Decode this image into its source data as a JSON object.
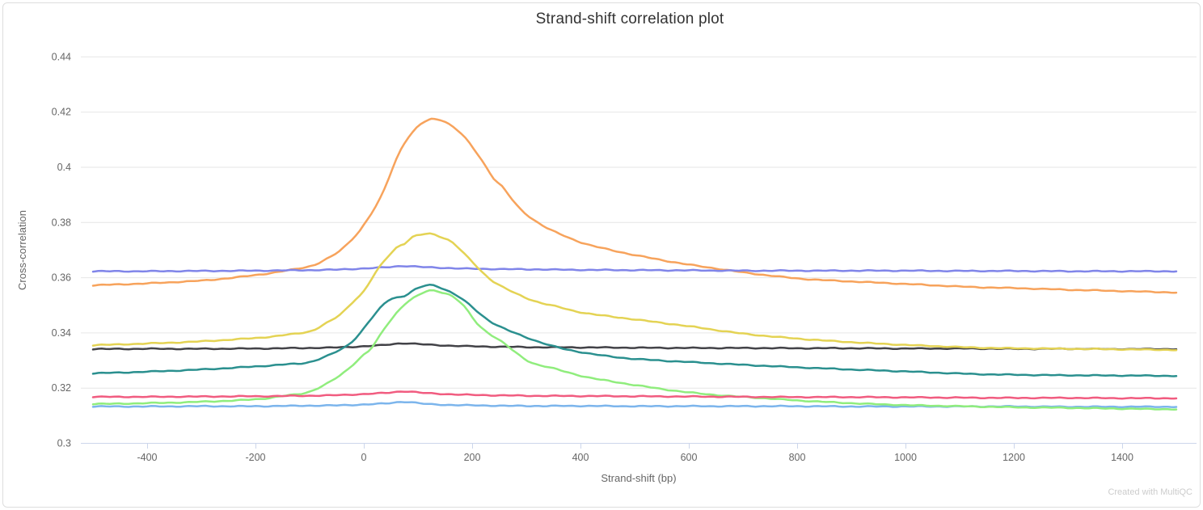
{
  "card": {
    "watermark": "Created with MultiQC"
  },
  "colors": {
    "gridline": "#e6e6e6",
    "axis_line": "#ccd6eb",
    "tick_label": "#666666",
    "axis_title": "#666666",
    "title": "#333333",
    "watermark": "#cccccc",
    "background": "#ffffff"
  },
  "chart_data": {
    "type": "line",
    "title": "Strand-shift correlation plot",
    "xlabel": "Strand-shift (bp)",
    "ylabel": "Cross-correlation",
    "xlim": [
      -500,
      1500
    ],
    "ylim": [
      0.3,
      0.44
    ],
    "grid": "horizontal-only",
    "legend": "none",
    "x_ticks": [
      -400,
      -200,
      0,
      200,
      400,
      600,
      800,
      1000,
      1200,
      1400
    ],
    "x_tick_labels": [
      "-400",
      "-200",
      "0",
      "200",
      "400",
      "600",
      "800",
      "1000",
      "1200",
      "1400"
    ],
    "y_ticks": [
      0.3,
      0.32,
      0.34,
      0.36,
      0.38,
      0.4,
      0.42,
      0.44
    ],
    "y_tick_labels": [
      "0.3",
      "0.32",
      "0.34",
      "0.36",
      "0.38",
      "0.4",
      "0.42",
      "0.44"
    ],
    "series": [
      {
        "color_name": "light-blue",
        "color": "#7cb5ec",
        "points": [
          [
            -500,
            0.3132
          ],
          [
            -400,
            0.3132
          ],
          [
            -300,
            0.3133
          ],
          [
            -200,
            0.3133
          ],
          [
            -100,
            0.3135
          ],
          [
            -50,
            0.3136
          ],
          [
            0,
            0.3139
          ],
          [
            40,
            0.3143
          ],
          [
            75,
            0.3149
          ],
          [
            110,
            0.3142
          ],
          [
            150,
            0.3138
          ],
          [
            200,
            0.3136
          ],
          [
            300,
            0.3134
          ],
          [
            400,
            0.3134
          ],
          [
            500,
            0.3133
          ],
          [
            600,
            0.3133
          ],
          [
            700,
            0.3133
          ],
          [
            800,
            0.3133
          ],
          [
            900,
            0.3132
          ],
          [
            1000,
            0.3132
          ],
          [
            1100,
            0.3132
          ],
          [
            1200,
            0.3132
          ],
          [
            1300,
            0.3131
          ],
          [
            1400,
            0.3131
          ],
          [
            1500,
            0.3131
          ]
        ]
      },
      {
        "color_name": "dark-grey",
        "color": "#434348",
        "points": [
          [
            -500,
            0.334
          ],
          [
            -400,
            0.3341
          ],
          [
            -300,
            0.3341
          ],
          [
            -200,
            0.3342
          ],
          [
            -100,
            0.3344
          ],
          [
            -50,
            0.3346
          ],
          [
            0,
            0.335
          ],
          [
            40,
            0.3355
          ],
          [
            72,
            0.3361
          ],
          [
            110,
            0.3357
          ],
          [
            150,
            0.3353
          ],
          [
            200,
            0.335
          ],
          [
            300,
            0.3347
          ],
          [
            400,
            0.3346
          ],
          [
            500,
            0.3345
          ],
          [
            600,
            0.3344
          ],
          [
            700,
            0.3344
          ],
          [
            800,
            0.3343
          ],
          [
            900,
            0.3343
          ],
          [
            1000,
            0.3342
          ],
          [
            1100,
            0.3342
          ],
          [
            1200,
            0.3341
          ],
          [
            1300,
            0.3341
          ],
          [
            1400,
            0.334
          ],
          [
            1500,
            0.334
          ]
        ]
      },
      {
        "color_name": "light-green",
        "color": "#90ed7d",
        "points": [
          [
            -500,
            0.3141
          ],
          [
            -400,
            0.3144
          ],
          [
            -300,
            0.3149
          ],
          [
            -200,
            0.3158
          ],
          [
            -150,
            0.317
          ],
          [
            -100,
            0.3186
          ],
          [
            -45,
            0.3243
          ],
          [
            0,
            0.332
          ],
          [
            15,
            0.3346
          ],
          [
            45,
            0.3433
          ],
          [
            75,
            0.3502
          ],
          [
            100,
            0.3534
          ],
          [
            122,
            0.3552
          ],
          [
            145,
            0.3545
          ],
          [
            164,
            0.3531
          ],
          [
            185,
            0.3495
          ],
          [
            209,
            0.3433
          ],
          [
            230,
            0.3398
          ],
          [
            254,
            0.3368
          ],
          [
            303,
            0.3297
          ],
          [
            350,
            0.327
          ],
          [
            408,
            0.324
          ],
          [
            460,
            0.3222
          ],
          [
            537,
            0.3199
          ],
          [
            600,
            0.3183
          ],
          [
            660,
            0.3172
          ],
          [
            716,
            0.3165
          ],
          [
            800,
            0.3154
          ],
          [
            900,
            0.3144
          ],
          [
            1000,
            0.3137
          ],
          [
            1100,
            0.3133
          ],
          [
            1200,
            0.3129
          ],
          [
            1300,
            0.3127
          ],
          [
            1400,
            0.3124
          ],
          [
            1500,
            0.3122
          ]
        ]
      },
      {
        "color_name": "orange",
        "color": "#f7a35c",
        "points": [
          [
            -500,
            0.3571
          ],
          [
            -400,
            0.3578
          ],
          [
            -300,
            0.3588
          ],
          [
            -250,
            0.3597
          ],
          [
            -200,
            0.3608
          ],
          [
            -150,
            0.3622
          ],
          [
            -100,
            0.364
          ],
          [
            -75,
            0.366
          ],
          [
            -45,
            0.3695
          ],
          [
            -15,
            0.3752
          ],
          [
            0,
            0.379
          ],
          [
            30,
            0.3885
          ],
          [
            60,
            0.4028
          ],
          [
            75,
            0.4087
          ],
          [
            90,
            0.4125
          ],
          [
            105,
            0.4155
          ],
          [
            120,
            0.417
          ],
          [
            130,
            0.4173
          ],
          [
            150,
            0.4164
          ],
          [
            180,
            0.412
          ],
          [
            210,
            0.4046
          ],
          [
            240,
            0.3958
          ],
          [
            255,
            0.393
          ],
          [
            290,
            0.3845
          ],
          [
            330,
            0.3788
          ],
          [
            370,
            0.375
          ],
          [
            410,
            0.3721
          ],
          [
            460,
            0.3697
          ],
          [
            510,
            0.3677
          ],
          [
            560,
            0.3659
          ],
          [
            610,
            0.3643
          ],
          [
            650,
            0.3632
          ],
          [
            700,
            0.3618
          ],
          [
            760,
            0.3604
          ],
          [
            820,
            0.3593
          ],
          [
            900,
            0.3585
          ],
          [
            1000,
            0.3576
          ],
          [
            1120,
            0.3565
          ],
          [
            1200,
            0.3561
          ],
          [
            1300,
            0.3555
          ],
          [
            1400,
            0.355
          ],
          [
            1500,
            0.3545
          ]
        ]
      },
      {
        "color_name": "purple",
        "color": "#8085e9",
        "points": [
          [
            -500,
            0.3622
          ],
          [
            -400,
            0.3622
          ],
          [
            -300,
            0.3623
          ],
          [
            -200,
            0.3624
          ],
          [
            -100,
            0.3626
          ],
          [
            -50,
            0.3628
          ],
          [
            0,
            0.3632
          ],
          [
            40,
            0.3636
          ],
          [
            72,
            0.3641
          ],
          [
            110,
            0.3637
          ],
          [
            150,
            0.3634
          ],
          [
            200,
            0.3631
          ],
          [
            300,
            0.3629
          ],
          [
            400,
            0.3627
          ],
          [
            500,
            0.3626
          ],
          [
            600,
            0.3625
          ],
          [
            700,
            0.3624
          ],
          [
            800,
            0.3624
          ],
          [
            900,
            0.3624
          ],
          [
            1000,
            0.3624
          ],
          [
            1100,
            0.3623
          ],
          [
            1200,
            0.3623
          ],
          [
            1300,
            0.3622
          ],
          [
            1400,
            0.3622
          ],
          [
            1500,
            0.3622
          ]
        ]
      },
      {
        "color_name": "pink",
        "color": "#f15c80",
        "points": [
          [
            -500,
            0.3167
          ],
          [
            -400,
            0.3167
          ],
          [
            -300,
            0.3168
          ],
          [
            -200,
            0.3169
          ],
          [
            -100,
            0.3171
          ],
          [
            -50,
            0.3173
          ],
          [
            0,
            0.3177
          ],
          [
            40,
            0.3181
          ],
          [
            75,
            0.3187
          ],
          [
            110,
            0.3181
          ],
          [
            150,
            0.3177
          ],
          [
            200,
            0.3174
          ],
          [
            300,
            0.3171
          ],
          [
            400,
            0.317
          ],
          [
            500,
            0.3169
          ],
          [
            600,
            0.3168
          ],
          [
            700,
            0.3167
          ],
          [
            800,
            0.3166
          ],
          [
            900,
            0.3166
          ],
          [
            1000,
            0.3165
          ],
          [
            1100,
            0.3164
          ],
          [
            1200,
            0.3163
          ],
          [
            1300,
            0.3163
          ],
          [
            1400,
            0.3162
          ],
          [
            1500,
            0.3162
          ]
        ]
      },
      {
        "color_name": "yellow",
        "color": "#e4d354",
        "points": [
          [
            -500,
            0.3354
          ],
          [
            -400,
            0.336
          ],
          [
            -300,
            0.3368
          ],
          [
            -200,
            0.338
          ],
          [
            -150,
            0.339
          ],
          [
            -100,
            0.3404
          ],
          [
            -75,
            0.3428
          ],
          [
            -45,
            0.3463
          ],
          [
            -15,
            0.3521
          ],
          [
            0,
            0.355
          ],
          [
            30,
            0.364
          ],
          [
            60,
            0.3707
          ],
          [
            75,
            0.3722
          ],
          [
            90,
            0.3746
          ],
          [
            105,
            0.3754
          ],
          [
            122,
            0.3758
          ],
          [
            140,
            0.3748
          ],
          [
            164,
            0.3726
          ],
          [
            194,
            0.3668
          ],
          [
            224,
            0.3609
          ],
          [
            250,
            0.3572
          ],
          [
            305,
            0.3521
          ],
          [
            360,
            0.3492
          ],
          [
            410,
            0.347
          ],
          [
            510,
            0.3445
          ],
          [
            610,
            0.342
          ],
          [
            700,
            0.3396
          ],
          [
            800,
            0.3378
          ],
          [
            900,
            0.3365
          ],
          [
            1000,
            0.3355
          ],
          [
            1120,
            0.3346
          ],
          [
            1200,
            0.3343
          ],
          [
            1300,
            0.3341
          ],
          [
            1400,
            0.3339
          ],
          [
            1500,
            0.3337
          ]
        ]
      },
      {
        "color_name": "teal",
        "color": "#2b908f",
        "points": [
          [
            -500,
            0.3252
          ],
          [
            -400,
            0.3258
          ],
          [
            -300,
            0.3266
          ],
          [
            -200,
            0.3277
          ],
          [
            -150,
            0.3284
          ],
          [
            -100,
            0.3293
          ],
          [
            -45,
            0.3336
          ],
          [
            -15,
            0.338
          ],
          [
            15,
            0.3453
          ],
          [
            45,
            0.3516
          ],
          [
            75,
            0.3533
          ],
          [
            95,
            0.3556
          ],
          [
            122,
            0.3572
          ],
          [
            150,
            0.3556
          ],
          [
            175,
            0.353
          ],
          [
            194,
            0.3502
          ],
          [
            224,
            0.3453
          ],
          [
            254,
            0.3419
          ],
          [
            303,
            0.338
          ],
          [
            360,
            0.3345
          ],
          [
            410,
            0.3326
          ],
          [
            460,
            0.3312
          ],
          [
            510,
            0.3303
          ],
          [
            600,
            0.3293
          ],
          [
            700,
            0.3283
          ],
          [
            800,
            0.3274
          ],
          [
            900,
            0.3266
          ],
          [
            1000,
            0.3259
          ],
          [
            1120,
            0.325
          ],
          [
            1200,
            0.3247
          ],
          [
            1300,
            0.3245
          ],
          [
            1400,
            0.3244
          ],
          [
            1500,
            0.3243
          ]
        ]
      }
    ]
  }
}
